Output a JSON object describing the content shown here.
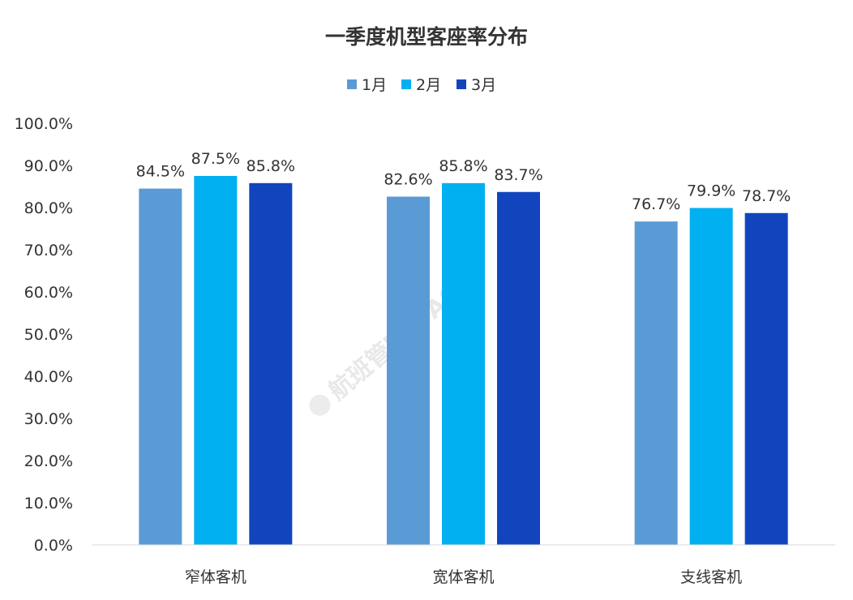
{
  "chart_data": {
    "type": "bar",
    "title": "一季度机型客座率分布",
    "categories": [
      "窄体客机",
      "宽体客机",
      "支线客机"
    ],
    "series": [
      {
        "name": "1月",
        "color": "#5b9bd5",
        "values": [
          84.5,
          82.6,
          76.7
        ],
        "labels": [
          "84.5%",
          "82.6%",
          "76.7%"
        ]
      },
      {
        "name": "2月",
        "color": "#00b0f0",
        "values": [
          87.5,
          85.8,
          79.9
        ],
        "labels": [
          "87.5%",
          "85.8%",
          "79.9%"
        ]
      },
      {
        "name": "3月",
        "color": "#1244be",
        "values": [
          85.8,
          83.7,
          78.7
        ],
        "labels": [
          "85.8%",
          "83.7%",
          "78.7%"
        ]
      }
    ],
    "y_ticks": [
      "0.0%",
      "10.0%",
      "20.0%",
      "30.0%",
      "40.0%",
      "50.0%",
      "60.0%",
      "70.0%",
      "80.0%",
      "90.0%",
      "100.0%"
    ],
    "ylim": [
      0,
      100
    ],
    "xlabel": "",
    "ylabel": "",
    "grid": false,
    "legend": "top-center",
    "watermark": "航班管家 DAST"
  }
}
